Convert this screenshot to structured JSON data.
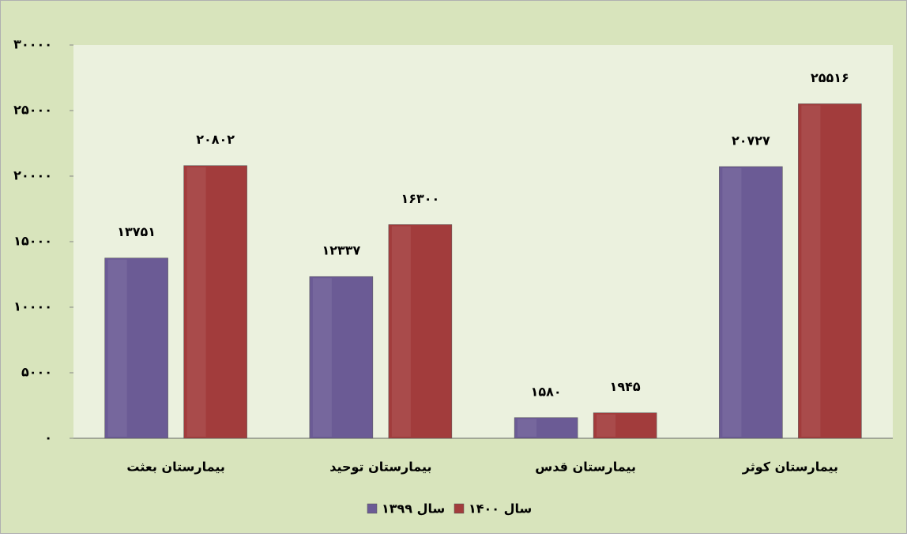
{
  "chart_data": {
    "type": "bar",
    "categories": [
      "بیمارستان بعثت",
      "بیمارستان توحید",
      "بیمارستان قدس",
      "بیمارستان کوثر"
    ],
    "series": [
      {
        "name": "سال ۱۳۹۹",
        "color": "#6b5b95",
        "values": [
          13751,
          12337,
          1580,
          20727
        ],
        "value_labels": [
          "۱۳۷۵۱",
          "۱۲۳۳۷",
          "۱۵۸۰",
          "۲۰۷۲۷"
        ]
      },
      {
        "name": "سال ۱۴۰۰",
        "color": "#a23c3c",
        "values": [
          20802,
          16300,
          1945,
          25516
        ],
        "value_labels": [
          "۲۰۸۰۲",
          "۱۶۳۰۰",
          "۱۹۴۵",
          "۲۵۵۱۶"
        ]
      }
    ],
    "ylim": [
      0,
      30000
    ],
    "yticks": [
      {
        "value": 0,
        "label": "۰"
      },
      {
        "value": 5000,
        "label": "۵۰۰۰"
      },
      {
        "value": 10000,
        "label": "۱۰۰۰۰"
      },
      {
        "value": 15000,
        "label": "۱۵۰۰۰"
      },
      {
        "value": 20000,
        "label": "۲۰۰۰۰"
      },
      {
        "value": 25000,
        "label": "۲۵۰۰۰"
      },
      {
        "value": 30000,
        "label": "۳۰۰۰۰"
      }
    ],
    "legend": "bottom"
  }
}
